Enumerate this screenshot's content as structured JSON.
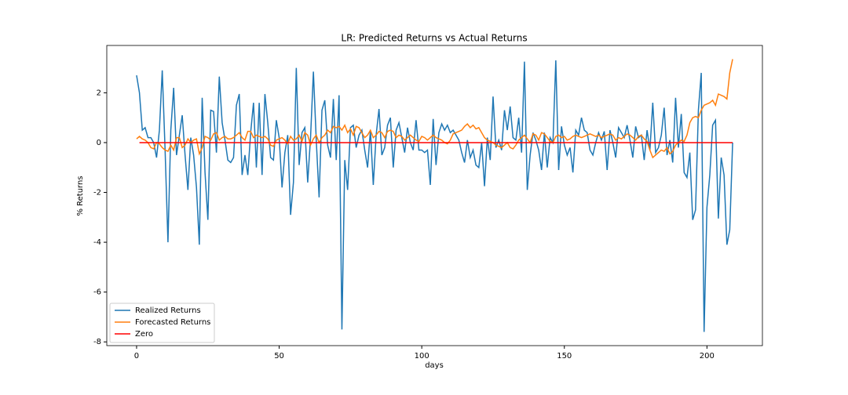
{
  "chart_data": {
    "type": "line",
    "title": "LR: Predicted Returns vs Actual Returns",
    "xlabel": "days",
    "ylabel": "% Returns",
    "xlim": [
      -10.45,
      219.45
    ],
    "ylim": [
      -8.15,
      3.9
    ],
    "xticks": [
      0,
      50,
      100,
      150,
      200
    ],
    "yticks": [
      -8,
      -6,
      -4,
      -2,
      0,
      2
    ],
    "legend": "lower left",
    "grid": false,
    "x": [
      0,
      1,
      2,
      3,
      4,
      5,
      6,
      7,
      8,
      9,
      10,
      11,
      12,
      13,
      14,
      15,
      16,
      17,
      18,
      19,
      20,
      21,
      22,
      23,
      24,
      25,
      26,
      27,
      28,
      29,
      30,
      31,
      32,
      33,
      34,
      35,
      36,
      37,
      38,
      39,
      40,
      41,
      42,
      43,
      44,
      45,
      46,
      47,
      48,
      49,
      50,
      51,
      52,
      53,
      54,
      55,
      56,
      57,
      58,
      59,
      60,
      61,
      62,
      63,
      64,
      65,
      66,
      67,
      68,
      69,
      70,
      71,
      72,
      73,
      74,
      75,
      76,
      77,
      78,
      79,
      80,
      81,
      82,
      83,
      84,
      85,
      86,
      87,
      88,
      89,
      90,
      91,
      92,
      93,
      94,
      95,
      96,
      97,
      98,
      99,
      100,
      101,
      102,
      103,
      104,
      105,
      106,
      107,
      108,
      109,
      110,
      111,
      112,
      113,
      114,
      115,
      116,
      117,
      118,
      119,
      120,
      121,
      122,
      123,
      124,
      125,
      126,
      127,
      128,
      129,
      130,
      131,
      132,
      133,
      134,
      135,
      136,
      137,
      138,
      139,
      140,
      141,
      142,
      143,
      144,
      145,
      146,
      147,
      148,
      149,
      150,
      151,
      152,
      153,
      154,
      155,
      156,
      157,
      158,
      159,
      160,
      161,
      162,
      163,
      164,
      165,
      166,
      167,
      168,
      169,
      170,
      171,
      172,
      173,
      174,
      175,
      176,
      177,
      178,
      179,
      180,
      181,
      182,
      183,
      184,
      185,
      186,
      187,
      188,
      189,
      190,
      191,
      192,
      193,
      194,
      195,
      196,
      197,
      198,
      199,
      200,
      201,
      202,
      203,
      204,
      205,
      206,
      207,
      208,
      209
    ],
    "series": [
      {
        "name": "Realized Returns",
        "color": "#1f77b4",
        "values": [
          2.7,
          2.0,
          0.5,
          0.6,
          0.2,
          0.2,
          0.0,
          -0.6,
          0.5,
          2.9,
          -0.3,
          -4.0,
          0.5,
          2.2,
          -0.5,
          0.3,
          1.1,
          -0.5,
          -1.9,
          0.2,
          -0.5,
          -1.8,
          -4.1,
          1.8,
          -1.2,
          -3.1,
          1.3,
          1.25,
          -0.4,
          2.65,
          0.8,
          0.1,
          -0.7,
          -0.8,
          -0.6,
          1.5,
          1.95,
          -1.3,
          -0.5,
          -1.3,
          0.4,
          1.6,
          -1.0,
          1.6,
          -1.3,
          1.95,
          0.8,
          -0.6,
          -0.7,
          0.9,
          0.2,
          -1.8,
          -0.4,
          0.3,
          -2.9,
          -1.6,
          3.0,
          -0.9,
          0.4,
          0.6,
          -1.6,
          0.2,
          2.85,
          0.1,
          -2.2,
          1.3,
          1.7,
          -0.1,
          -0.6,
          1.75,
          -0.7,
          1.9,
          -7.5,
          -0.7,
          -1.9,
          0.6,
          0.7,
          -0.2,
          0.3,
          0.5,
          -0.3,
          -1.0,
          0.5,
          -1.7,
          0.3,
          1.35,
          -0.5,
          -0.2,
          0.7,
          1.0,
          -1.0,
          0.5,
          0.8,
          0.2,
          -0.4,
          0.6,
          0.0,
          -0.3,
          0.9,
          -0.3,
          -0.3,
          -0.4,
          -0.3,
          -1.7,
          0.95,
          -0.9,
          0.4,
          0.75,
          0.5,
          0.7,
          0.4,
          0.5,
          0.3,
          0.1,
          -0.4,
          -0.8,
          0.1,
          -0.6,
          -0.3,
          -0.9,
          -1.0,
          0.0,
          -1.75,
          0.2,
          -0.7,
          1.85,
          -0.2,
          0.1,
          -0.3,
          1.3,
          0.5,
          1.45,
          0.2,
          0.1,
          1.0,
          -0.4,
          3.25,
          -1.9,
          -0.5,
          0.4,
          0.1,
          -0.3,
          -1.1,
          0.4,
          -1.0,
          0.2,
          0.0,
          3.3,
          -1.1,
          0.65,
          -0.1,
          -0.5,
          -0.2,
          -1.2,
          0.5,
          0.3,
          1.0,
          0.5,
          0.4,
          -0.3,
          -0.5,
          0.0,
          0.4,
          0.1,
          0.45,
          -1.1,
          0.5,
          0.0,
          -0.6,
          0.6,
          0.4,
          0.2,
          0.7,
          0.1,
          -0.6,
          0.65,
          0.2,
          0.3,
          -0.7,
          0.5,
          -0.3,
          1.6,
          -0.4,
          -0.2,
          0.3,
          1.4,
          -0.5,
          0.1,
          -0.8,
          1.8,
          -0.2,
          1.15,
          -1.2,
          -1.4,
          -0.4,
          -3.1,
          -2.7,
          1.3,
          2.8,
          -7.6,
          -2.6,
          -1.3,
          0.7,
          0.9,
          -3.05,
          -0.6,
          -1.3,
          -4.1,
          -3.5,
          0.0
        ]
      },
      {
        "name": "Forecasted Returns",
        "color": "#ff7f0e",
        "values": [
          0.15,
          0.25,
          0.15,
          0.1,
          0.0,
          -0.2,
          -0.25,
          0.0,
          -0.05,
          -0.2,
          -0.3,
          -0.35,
          -0.1,
          -0.3,
          0.2,
          0.2,
          -0.2,
          -0.1,
          0.15,
          0.0,
          0.1,
          0.15,
          -0.45,
          -0.2,
          0.25,
          0.2,
          0.1,
          0.35,
          0.4,
          0.1,
          0.2,
          0.25,
          0.15,
          0.15,
          0.2,
          0.3,
          0.4,
          0.2,
          0.1,
          0.45,
          0.45,
          0.2,
          0.3,
          0.25,
          0.2,
          0.25,
          0.15,
          -0.1,
          -0.15,
          0.1,
          0.15,
          0.2,
          0.1,
          -0.05,
          0.25,
          0.1,
          0.15,
          0.3,
          0.05,
          0.4,
          0.3,
          -0.1,
          0.15,
          0.3,
          0.0,
          0.2,
          0.3,
          0.5,
          0.4,
          0.65,
          0.6,
          0.65,
          0.5,
          0.7,
          0.4,
          0.55,
          0.3,
          0.65,
          0.6,
          0.4,
          0.2,
          0.3,
          0.5,
          0.2,
          0.3,
          0.45,
          0.4,
          0.2,
          0.45,
          0.5,
          0.45,
          0.2,
          0.3,
          0.25,
          0.1,
          0.2,
          0.3,
          0.2,
          0.1,
          0.05,
          0.25,
          0.2,
          0.1,
          0.2,
          0.3,
          0.2,
          0.15,
          0.1,
          0.0,
          -0.05,
          0.1,
          0.35,
          0.4,
          0.45,
          0.5,
          0.65,
          0.75,
          0.6,
          0.7,
          0.55,
          0.6,
          0.4,
          0.2,
          0.1,
          0.05,
          0.0,
          -0.1,
          -0.15,
          -0.2,
          -0.1,
          0.0,
          -0.2,
          -0.25,
          -0.1,
          0.1,
          0.2,
          0.3,
          0.15,
          0.0,
          0.35,
          0.3,
          0.1,
          0.4,
          0.35,
          0.2,
          0.05,
          0.0,
          0.25,
          0.3,
          0.2,
          0.25,
          0.1,
          0.15,
          0.25,
          0.3,
          0.25,
          0.2,
          0.25,
          0.3,
          0.35,
          0.3,
          0.25,
          0.3,
          0.2,
          0.25,
          0.3,
          0.35,
          0.3,
          0.1,
          0.2,
          0.15,
          0.25,
          0.35,
          0.3,
          0.2,
          0.1,
          0.25,
          0.3,
          0.15,
          0.05,
          -0.3,
          -0.6,
          -0.5,
          -0.4,
          -0.3,
          -0.35,
          -0.2,
          -0.45,
          -0.35,
          -0.1,
          0.0,
          0.1,
          0.05,
          0.3,
          0.8,
          1.0,
          1.05,
          1.0,
          1.3,
          1.5,
          1.55,
          1.6,
          1.7,
          1.5,
          1.95,
          1.9,
          1.85,
          1.75,
          2.8,
          3.35
        ]
      },
      {
        "name": "Zero",
        "color": "#ff0000",
        "x": [
          1,
          209
        ],
        "values": [
          0,
          0
        ]
      }
    ]
  }
}
